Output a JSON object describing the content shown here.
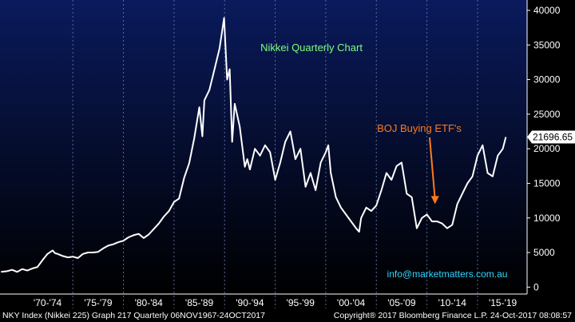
{
  "chart_data": {
    "type": "line",
    "title": "Nikkei Quarterly Chart",
    "xlabel": "",
    "ylabel": "",
    "x_tick_labels": [
      "'70-'74",
      "'75-'79",
      "'80-'84",
      "'85-'89",
      "'90-'94",
      "'95-'99",
      "'00-'04",
      "'05-'09",
      "'10-'14",
      "'15-'19"
    ],
    "y_ticks": [
      0,
      5000,
      10000,
      15000,
      20000,
      25000,
      30000,
      35000,
      40000
    ],
    "ylim": [
      -1000,
      41500
    ],
    "xlim": [
      1967.8,
      2019.9
    ],
    "grid": "dashed vertical lines between period labels",
    "series": [
      {
        "name": "NKY Index",
        "color": "#ffffff",
        "x": [
          1967.9,
          1968.5,
          1969.0,
          1969.5,
          1970.0,
          1970.5,
          1971.0,
          1971.5,
          1972.0,
          1972.5,
          1973.0,
          1973.25,
          1973.5,
          1974.0,
          1974.5,
          1975.0,
          1975.5,
          1976.0,
          1976.5,
          1977.0,
          1977.5,
          1978.0,
          1978.5,
          1979.0,
          1979.5,
          1980.0,
          1980.5,
          1981.0,
          1981.5,
          1982.0,
          1982.5,
          1983.0,
          1983.5,
          1984.0,
          1984.5,
          1985.0,
          1985.5,
          1986.0,
          1986.5,
          1987.0,
          1987.5,
          1987.8,
          1988.0,
          1988.5,
          1989.0,
          1989.5,
          1989.95,
          1990.25,
          1990.5,
          1990.75,
          1991.0,
          1991.5,
          1992.0,
          1992.25,
          1992.5,
          1993.0,
          1993.5,
          1994.0,
          1994.5,
          1995.0,
          1995.5,
          1996.0,
          1996.5,
          1997.0,
          1997.5,
          1998.0,
          1998.5,
          1999.0,
          1999.5,
          2000.0,
          2000.25,
          2000.5,
          2001.0,
          2001.5,
          2002.0,
          2002.5,
          2003.0,
          2003.3,
          2003.5,
          2004.0,
          2004.5,
          2005.0,
          2005.5,
          2006.0,
          2006.5,
          2007.0,
          2007.5,
          2008.0,
          2008.5,
          2009.0,
          2009.5,
          2010.0,
          2010.5,
          2011.0,
          2011.5,
          2012.0,
          2012.5,
          2013.0,
          2013.5,
          2014.0,
          2014.5,
          2015.0,
          2015.5,
          2016.0,
          2016.5,
          2017.0,
          2017.5,
          2017.8
        ],
        "y": [
          2200,
          2300,
          2500,
          2200,
          2600,
          2400,
          2700,
          2900,
          3900,
          4800,
          5300,
          4900,
          4800,
          4500,
          4300,
          4400,
          4200,
          4800,
          5000,
          5000,
          5100,
          5600,
          6000,
          6200,
          6500,
          6700,
          7200,
          7500,
          7700,
          7100,
          7600,
          8400,
          9200,
          10200,
          11000,
          12300,
          12800,
          15800,
          17900,
          21500,
          26000,
          21800,
          27000,
          28500,
          31500,
          34500,
          38900,
          30000,
          31500,
          21000,
          26500,
          23200,
          17400,
          18500,
          17000,
          20000,
          19000,
          20500,
          19500,
          15500,
          18000,
          21000,
          22500,
          18500,
          20000,
          14500,
          16500,
          14000,
          18000,
          19500,
          20500,
          16500,
          13000,
          11500,
          10500,
          9500,
          8500,
          8000,
          10000,
          11500,
          11000,
          11800,
          14000,
          16500,
          15500,
          17500,
          18000,
          13500,
          13000,
          8500,
          10000,
          10500,
          9500,
          9500,
          9200,
          8500,
          9000,
          12000,
          13500,
          15000,
          16000,
          19000,
          20500,
          16500,
          16000,
          19000,
          20000,
          21696.65
        ]
      }
    ],
    "annotations": [
      {
        "text": "BOJ Buying ETF's",
        "color": "#ff7a1a",
        "arrow_to_x": 2010.8,
        "arrow_to_y": 12000
      }
    ],
    "last_value_label": "21696.65"
  },
  "watermark": "info@marketmatters.com.au",
  "footer": {
    "left": "NKY Index (Nikkei 225) Graph 217  Quarterly 06NOV1967-24OCT2017",
    "right": "Copyright® 2017 Bloomberg Finance L.P.     24-Oct-2017 08:08:57"
  },
  "colors": {
    "background_top": "#0a1a5c",
    "background_bottom": "#000000",
    "line": "#ffffff",
    "title": "#7dff7d",
    "annotation": "#ff7a1a",
    "watermark": "#2fd6ff"
  }
}
